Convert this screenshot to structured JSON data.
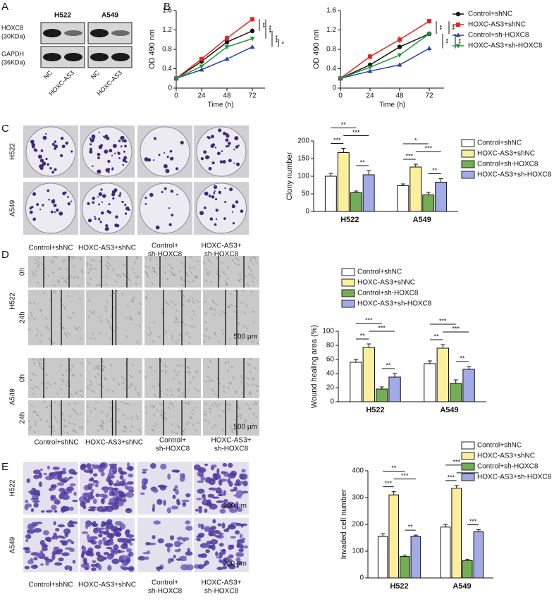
{
  "figure": {
    "panel_letters": [
      "A",
      "B",
      "C",
      "D",
      "E"
    ],
    "blot": {
      "cell_lines": [
        "H522",
        "A549"
      ],
      "lanes": [
        "NC",
        "HOXC-AS3",
        "NC",
        "HOXC-AS3"
      ],
      "rows": [
        [
          "HOXC8",
          "(30KDa)"
        ],
        [
          "GAPDH",
          "(36KDa)"
        ]
      ]
    },
    "colony": {
      "rows": [
        "H522",
        "A549"
      ],
      "columns": [
        [
          "Control+shNC"
        ],
        [
          "HOXC-AS3+shNC"
        ],
        [
          "Control+",
          "sh-HOXC8"
        ],
        [
          "HOXC-AS3+",
          "sh-HOXC8"
        ]
      ]
    },
    "wound": {
      "rows": [
        "H522",
        "A549"
      ],
      "times": [
        "0h",
        "24h"
      ],
      "columns": [
        [
          "Control+shNC"
        ],
        [
          "HOXC-AS3+shNC"
        ],
        [
          "Control+",
          "sh-HOXC8"
        ],
        [
          "HOXC-AS3+",
          "sh-HOXC8"
        ]
      ],
      "scale_bar": "500 μm"
    },
    "invasion": {
      "rows": [
        "H522",
        "A549"
      ],
      "columns": [
        [
          "Control+shNC"
        ],
        [
          "HOXC-AS3+shNC"
        ],
        [
          "Control+",
          "sh-HOXC8"
        ],
        [
          "HOXC-AS3+",
          "sh-HOXC8"
        ]
      ],
      "scale_bar": "200 μm"
    }
  },
  "chart_data": [
    {
      "type": "line",
      "xlabel": "Time (h)",
      "ylabel": "OD 490 nm",
      "x": [
        0,
        24,
        48,
        72
      ],
      "xlim": [
        0,
        84
      ],
      "xticks": [
        0,
        24,
        48,
        72
      ],
      "ylim": [
        0,
        1.6
      ],
      "yticks": [
        0,
        0.4,
        0.8,
        1.2,
        1.6
      ],
      "series": [
        {
          "color": "#111111",
          "marker": "circle",
          "values": [
            0.2,
            0.55,
            0.95,
            1.18
          ],
          "errors": [
            0.02,
            0.05,
            0.05,
            0.05
          ]
        },
        {
          "color": "#e3261f",
          "marker": "square",
          "values": [
            0.2,
            0.6,
            1.03,
            1.42
          ],
          "errors": [
            0.02,
            0.05,
            0.06,
            0.05
          ]
        },
        {
          "color": "#2b3fa6",
          "marker": "triangle",
          "values": [
            0.2,
            0.38,
            0.6,
            0.85
          ],
          "errors": [
            0.02,
            0.04,
            0.03,
            0.04
          ]
        },
        {
          "color": "#1e9a3c",
          "marker": "triangle-down",
          "values": [
            0.2,
            0.45,
            0.85,
            1.02
          ],
          "errors": [
            0.02,
            0.04,
            0.05,
            0.05
          ]
        }
      ],
      "annotations": [
        {
          "text": "**",
          "between": [
            1,
            0
          ]
        },
        {
          "text": "***",
          "between": [
            1,
            3
          ]
        },
        {
          "text": "***",
          "between": [
            0,
            2
          ]
        },
        {
          "text": "*",
          "between": [
            3,
            2
          ]
        }
      ]
    },
    {
      "type": "line",
      "xlabel": "Time (h)",
      "ylabel": "OD 490 nm",
      "x": [
        0,
        24,
        48,
        72
      ],
      "xlim": [
        0,
        84
      ],
      "xticks": [
        0,
        24,
        48,
        72
      ],
      "ylim": [
        0,
        1.6
      ],
      "yticks": [
        0,
        0.4,
        0.8,
        1.2,
        1.6
      ],
      "legend": "right",
      "series": [
        {
          "name": "Control+shNC",
          "color": "#111111",
          "marker": "circle",
          "values": [
            0.2,
            0.48,
            0.85,
            1.12
          ],
          "errors": [
            0.02,
            0.04,
            0.04,
            0.05
          ]
        },
        {
          "name": "HOXC-AS3+shNC",
          "color": "#e3261f",
          "marker": "square",
          "values": [
            0.2,
            0.65,
            1.0,
            1.38
          ],
          "errors": [
            0.02,
            0.06,
            0.07,
            0.05
          ]
        },
        {
          "name": "Control+sh-HOXC8",
          "color": "#2b3fa6",
          "marker": "triangle",
          "values": [
            0.2,
            0.35,
            0.48,
            0.82
          ],
          "errors": [
            0.02,
            0.03,
            0.02,
            0.05
          ]
        },
        {
          "name": "HOXC-AS3+sh-HOXC8",
          "color": "#1e9a3c",
          "marker": "triangle-down",
          "values": [
            0.2,
            0.43,
            0.68,
            1.12
          ],
          "errors": [
            0.02,
            0.04,
            0.05,
            0.04
          ]
        }
      ],
      "annotations": [
        {
          "text": "**",
          "between": [
            1,
            0
          ]
        },
        {
          "text": "**",
          "between": [
            0,
            2
          ]
        },
        {
          "text": "**",
          "between": [
            1,
            3
          ]
        },
        {
          "text": "**",
          "between": [
            3,
            2
          ]
        }
      ]
    },
    {
      "type": "bar",
      "ylabel": "Clony number",
      "categories": [
        "H522",
        "A549"
      ],
      "ylim": [
        0,
        200
      ],
      "yticks": [
        0,
        50,
        100,
        150,
        200
      ],
      "legend": "right",
      "series": [
        {
          "name": "Control+shNC",
          "color": "#ffffff",
          "values": [
            100,
            73
          ],
          "errors": [
            8,
            5
          ]
        },
        {
          "name": "HOXC-AS3+shNC",
          "color": "#fcef9c",
          "values": [
            167,
            126
          ],
          "errors": [
            12,
            8
          ]
        },
        {
          "name": "Control+sh-HOXC8",
          "color": "#74ae54",
          "values": [
            53,
            47
          ],
          "errors": [
            5,
            7
          ]
        },
        {
          "name": "HOXC-AS3+sh-HOXC8",
          "color": "#a3abe6",
          "values": [
            104,
            83
          ],
          "errors": [
            12,
            10
          ]
        }
      ],
      "annotations": [
        {
          "text": "**",
          "category": 0,
          "between": [
            2,
            3
          ]
        },
        {
          "text": "***",
          "category": 0,
          "between": [
            0,
            1
          ]
        },
        {
          "text": "***",
          "category": 0,
          "between": [
            1,
            3
          ]
        },
        {
          "text": "**",
          "category": 0,
          "between": [
            0,
            2
          ]
        },
        {
          "text": "**",
          "category": 1,
          "between": [
            2,
            3
          ]
        },
        {
          "text": "***",
          "category": 1,
          "between": [
            0,
            1
          ]
        },
        {
          "text": "***",
          "category": 1,
          "between": [
            1,
            3
          ]
        },
        {
          "text": "*",
          "category": 1,
          "between": [
            0,
            2
          ]
        }
      ]
    },
    {
      "type": "bar",
      "ylabel": "Wound healing area (%)",
      "categories": [
        "H522",
        "A549"
      ],
      "ylim": [
        0,
        100
      ],
      "yticks": [
        0,
        20,
        40,
        60,
        80,
        100
      ],
      "legend": "top",
      "series": [
        {
          "name": "Control+shNC",
          "color": "#ffffff",
          "values": [
            56,
            54
          ],
          "errors": [
            4,
            4
          ]
        },
        {
          "name": "HOXC-AS3+shNC",
          "color": "#fcef9c",
          "values": [
            77,
            76
          ],
          "errors": [
            5,
            5
          ]
        },
        {
          "name": "Control+sh-HOXC8",
          "color": "#74ae54",
          "values": [
            18,
            26
          ],
          "errors": [
            3,
            5
          ]
        },
        {
          "name": "HOXC-AS3+sh-HOXC8",
          "color": "#a3abe6",
          "values": [
            35,
            46
          ],
          "errors": [
            5,
            4
          ]
        }
      ],
      "annotations": [
        {
          "text": "**",
          "category": 0,
          "between": [
            2,
            3
          ]
        },
        {
          "text": "**",
          "category": 0,
          "between": [
            0,
            1
          ]
        },
        {
          "text": "***",
          "category": 0,
          "between": [
            1,
            3
          ]
        },
        {
          "text": "***",
          "category": 0,
          "between": [
            0,
            2
          ]
        },
        {
          "text": "**",
          "category": 1,
          "between": [
            2,
            3
          ]
        },
        {
          "text": "**",
          "category": 1,
          "between": [
            0,
            1
          ]
        },
        {
          "text": "***",
          "category": 1,
          "between": [
            1,
            3
          ]
        },
        {
          "text": "***",
          "category": 1,
          "between": [
            0,
            2
          ]
        }
      ]
    },
    {
      "type": "bar",
      "ylabel": "Invaded cell number",
      "categories": [
        "H522",
        "A549"
      ],
      "ylim": [
        0,
        400
      ],
      "yticks": [
        0,
        100,
        200,
        300,
        400
      ],
      "legend": "top",
      "series": [
        {
          "name": "Control+shNC",
          "color": "#ffffff",
          "values": [
            155,
            190
          ],
          "errors": [
            10,
            10
          ]
        },
        {
          "name": "HOXC-AS3+shNC",
          "color": "#fcef9c",
          "values": [
            310,
            335
          ],
          "errors": [
            12,
            10
          ]
        },
        {
          "name": "Control+sh-HOXC8",
          "color": "#74ae54",
          "values": [
            80,
            65
          ],
          "errors": [
            5,
            5
          ]
        },
        {
          "name": "HOXC-AS3+sh-HOXC8",
          "color": "#a3abe6",
          "values": [
            155,
            172
          ],
          "errors": [
            5,
            8
          ]
        }
      ],
      "annotations": [
        {
          "text": "**",
          "category": 0,
          "between": [
            2,
            3
          ]
        },
        {
          "text": "***",
          "category": 0,
          "between": [
            0,
            1
          ]
        },
        {
          "text": "***",
          "category": 0,
          "between": [
            1,
            3
          ]
        },
        {
          "text": "**",
          "category": 0,
          "between": [
            0,
            2
          ]
        },
        {
          "text": "***",
          "category": 1,
          "between": [
            2,
            3
          ]
        },
        {
          "text": "***",
          "category": 1,
          "between": [
            0,
            1
          ]
        },
        {
          "text": "***",
          "category": 1,
          "between": [
            1,
            3
          ]
        },
        {
          "text": "***",
          "category": 1,
          "between": [
            0,
            2
          ]
        }
      ]
    }
  ]
}
